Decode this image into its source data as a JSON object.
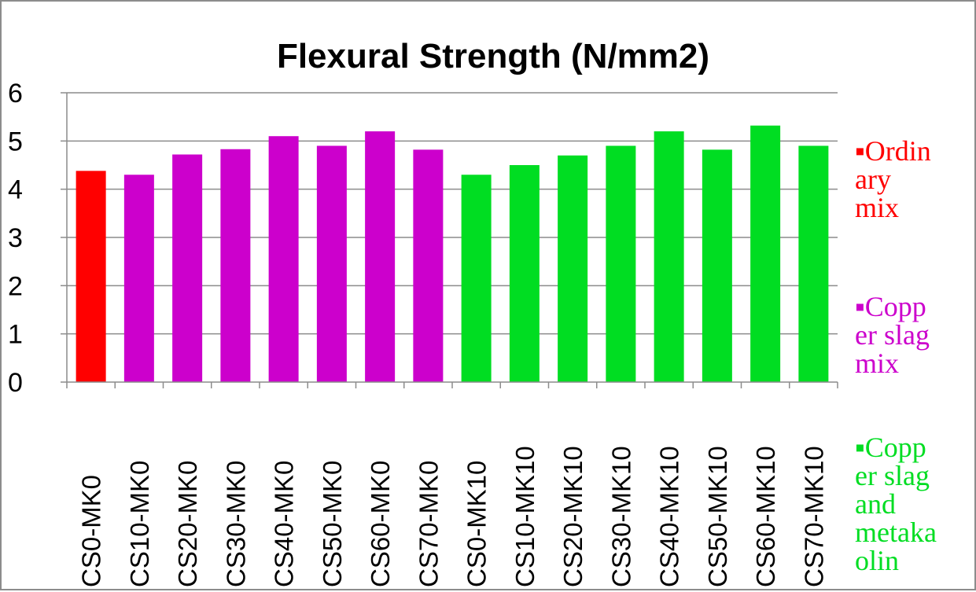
{
  "chart_data": {
    "type": "bar",
    "title": "Flexural Strength (N/mm2)",
    "xlabel": "",
    "ylabel": "",
    "ylim": [
      0,
      6
    ],
    "yticks": [
      "0",
      "1",
      "2",
      "3",
      "4",
      "5",
      "6"
    ],
    "grid": true,
    "legend_position": "right",
    "categories": [
      "CS0-MK0",
      "CS10-MK0",
      "CS20-MK0",
      "CS30-MK0",
      "CS40-MK0",
      "CS50-MK0",
      "CS60-MK0",
      "CS70-MK0",
      "CS0-MK10",
      "CS10-MK10",
      "CS20-MK10",
      "CS30-MK10",
      "CS40-MK10",
      "CS50-MK10",
      "CS60-MK10",
      "CS70-MK10"
    ],
    "values": [
      4.38,
      4.3,
      4.72,
      4.83,
      5.1,
      4.9,
      5.2,
      4.82,
      4.3,
      4.5,
      4.7,
      4.9,
      5.2,
      4.82,
      5.32,
      4.9
    ],
    "bar_groups": [
      0,
      1,
      1,
      1,
      1,
      1,
      1,
      1,
      2,
      2,
      2,
      2,
      2,
      2,
      2,
      2
    ],
    "legend": [
      {
        "lines": [
          "▪Ordin",
          "ary",
          "mix"
        ],
        "color": "#ff0000"
      },
      {
        "lines": [
          "▪Copp",
          "er slag",
          "mix"
        ],
        "color": "#cc00cc"
      },
      {
        "lines": [
          "▪Copp",
          "er slag",
          "and",
          "metaka",
          "olin"
        ],
        "color": "#00dd22"
      }
    ]
  }
}
